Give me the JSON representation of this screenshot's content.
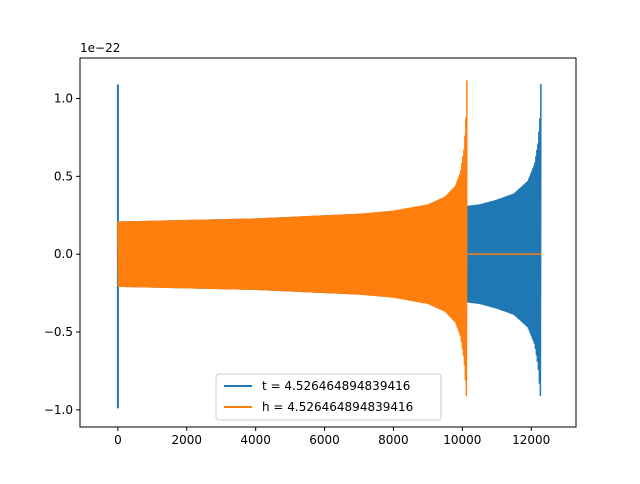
{
  "chart_data": {
    "type": "line",
    "title": "",
    "xlabel": "",
    "ylabel": "",
    "y_offset_label": "1e−22",
    "y_scale": 1e-22,
    "xlim": [
      -1100,
      13300
    ],
    "ylim": [
      -1.11,
      1.26
    ],
    "x_ticks": [
      0,
      2000,
      4000,
      6000,
      8000,
      10000,
      12000
    ],
    "x_tick_labels": [
      "0",
      "2000",
      "4000",
      "6000",
      "8000",
      "10000",
      "12000"
    ],
    "y_ticks": [
      -1.0,
      -0.5,
      0.0,
      0.5,
      1.0
    ],
    "y_tick_labels": [
      "−1.0",
      "−0.5",
      "0.0",
      "0.5",
      "1.0"
    ],
    "grid": false,
    "legend_position": "lower-center",
    "series": [
      {
        "name": "t = 4.526464894839416",
        "color": "#1f77b4",
        "style": "chirp-oscillation",
        "start_spike": {
          "x": 0,
          "ymax": 1.09,
          "ymin": -0.99
        },
        "x_start": 0,
        "x_end": 12290,
        "envelope_x": [
          0,
          2000,
          4000,
          6000,
          8000,
          9500,
          10130,
          10500,
          11000,
          11500,
          11900,
          12100,
          12200,
          12260,
          12290
        ],
        "envelope_pos": [
          0.21,
          0.22,
          0.23,
          0.25,
          0.27,
          0.29,
          0.31,
          0.32,
          0.35,
          0.39,
          0.47,
          0.58,
          0.72,
          0.9,
          1.18
        ],
        "envelope_neg": [
          -0.21,
          -0.22,
          -0.23,
          -0.25,
          -0.27,
          -0.29,
          -0.31,
          -0.32,
          -0.35,
          -0.39,
          -0.47,
          -0.58,
          -0.72,
          -0.9,
          -0.95
        ]
      },
      {
        "name": "h = 4.526464894839416",
        "color": "#ff7f0e",
        "style": "chirp-oscillation",
        "x_start": 0,
        "x_end": 10140,
        "tail_to": 12290,
        "envelope_x": [
          0,
          1000,
          2000,
          4000,
          6000,
          7000,
          8000,
          9000,
          9500,
          9800,
          9950,
          10050,
          10100,
          10140
        ],
        "envelope_pos": [
          0.21,
          0.215,
          0.22,
          0.23,
          0.25,
          0.26,
          0.28,
          0.32,
          0.37,
          0.44,
          0.53,
          0.68,
          0.85,
          1.18
        ],
        "envelope_neg": [
          -0.21,
          -0.215,
          -0.22,
          -0.23,
          -0.25,
          -0.26,
          -0.28,
          -0.32,
          -0.37,
          -0.44,
          -0.53,
          -0.68,
          -0.85,
          -0.99
        ]
      }
    ]
  }
}
